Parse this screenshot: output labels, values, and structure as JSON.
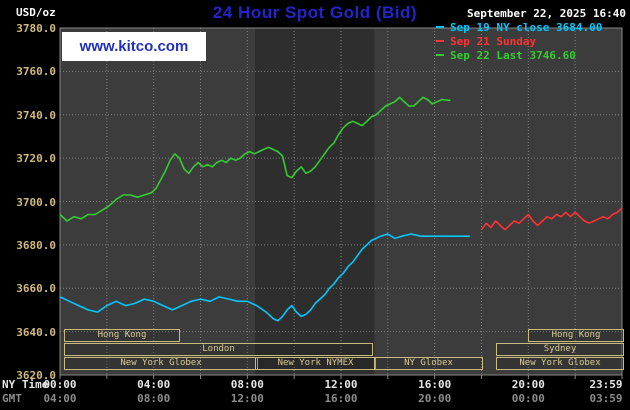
{
  "header": {
    "units_label": "USD/oz",
    "title": "24 Hour Spot Gold (Bid)",
    "datetime": "September 22, 2025 16:40",
    "watermark": "www.kitco.com",
    "legend": [
      {
        "label": "Sep 19 NY close 3684.00",
        "color": "#00c8ff"
      },
      {
        "label": "Sep 21 Sunday",
        "color": "#ff3232"
      },
      {
        "label": "Sep 22 Last 3746.60",
        "color": "#32cc32"
      }
    ]
  },
  "axes": {
    "ny_label": "NY Time",
    "gmt_label": "GMT",
    "ny_ticks": [
      {
        "t": 0,
        "label": "00:00"
      },
      {
        "t": 4,
        "label": "04:00"
      },
      {
        "t": 8,
        "label": "08:00"
      },
      {
        "t": 12,
        "label": "12:00"
      },
      {
        "t": 16,
        "label": "16:00"
      },
      {
        "t": 20,
        "label": "20:00"
      },
      {
        "t": 24,
        "label": "23:59"
      }
    ],
    "gmt_ticks": [
      {
        "t": 0,
        "label": "04:00"
      },
      {
        "t": 4,
        "label": "08:00"
      },
      {
        "t": 8,
        "label": "12:00"
      },
      {
        "t": 12,
        "label": "16:00"
      },
      {
        "t": 16,
        "label": "20:00"
      },
      {
        "t": 20,
        "label": "00:00"
      },
      {
        "t": 24,
        "label": "03:59"
      }
    ]
  },
  "chart_data": {
    "type": "line",
    "title": "24 Hour Spot Gold (Bid)",
    "ylabel": "USD/oz",
    "x_unit": "hours NY time",
    "xlim": [
      0,
      24
    ],
    "ylim": [
      3620,
      3780
    ],
    "yticks": [
      3780,
      3760,
      3740,
      3720,
      3700,
      3680,
      3660,
      3640,
      3620
    ],
    "ygrid": [
      3760,
      3740,
      3720,
      3700,
      3680,
      3660,
      3640
    ],
    "xgrid": [
      2,
      4,
      6,
      8,
      10,
      12,
      14,
      16,
      18,
      20,
      22
    ],
    "plot_bg": "#3c3c3c",
    "shade": {
      "t0": 8.33,
      "t1": 13.42,
      "color": "#2e2e2e"
    },
    "grid_color": "#7d7d7d",
    "border_color": "#888888",
    "series": [
      {
        "id": "sep19",
        "name": "Sep 19 NY close 3684.00",
        "color": "#00c8ff",
        "points": [
          [
            0,
            3656
          ],
          [
            0.4,
            3654
          ],
          [
            0.8,
            3652
          ],
          [
            1.2,
            3650
          ],
          [
            1.6,
            3649
          ],
          [
            2.0,
            3652
          ],
          [
            2.4,
            3654
          ],
          [
            2.8,
            3652
          ],
          [
            3.2,
            3653
          ],
          [
            3.6,
            3655
          ],
          [
            4.0,
            3654
          ],
          [
            4.4,
            3652
          ],
          [
            4.8,
            3650
          ],
          [
            5.2,
            3652
          ],
          [
            5.6,
            3654
          ],
          [
            6.0,
            3655
          ],
          [
            6.4,
            3654
          ],
          [
            6.8,
            3656
          ],
          [
            7.2,
            3655
          ],
          [
            7.6,
            3654
          ],
          [
            8.0,
            3654
          ],
          [
            8.4,
            3652
          ],
          [
            8.8,
            3649
          ],
          [
            9.1,
            3646
          ],
          [
            9.3,
            3645
          ],
          [
            9.5,
            3647
          ],
          [
            9.7,
            3650
          ],
          [
            9.9,
            3652
          ],
          [
            10.1,
            3649
          ],
          [
            10.3,
            3647
          ],
          [
            10.5,
            3648
          ],
          [
            10.7,
            3650
          ],
          [
            10.9,
            3653
          ],
          [
            11.1,
            3655
          ],
          [
            11.3,
            3657
          ],
          [
            11.5,
            3660
          ],
          [
            11.7,
            3662
          ],
          [
            11.9,
            3665
          ],
          [
            12.1,
            3667
          ],
          [
            12.3,
            3670
          ],
          [
            12.5,
            3672
          ],
          [
            12.7,
            3675
          ],
          [
            12.9,
            3678
          ],
          [
            13.1,
            3680
          ],
          [
            13.3,
            3682
          ],
          [
            13.5,
            3683
          ],
          [
            13.7,
            3684
          ],
          [
            14.0,
            3685
          ],
          [
            14.3,
            3683
          ],
          [
            14.6,
            3684
          ],
          [
            15.0,
            3685
          ],
          [
            15.4,
            3684
          ],
          [
            15.8,
            3684
          ],
          [
            16.2,
            3684
          ],
          [
            16.6,
            3684
          ],
          [
            17.0,
            3684
          ],
          [
            17.5,
            3684
          ]
        ]
      },
      {
        "id": "sep21",
        "name": "Sep 21 Sunday",
        "color": "#ff3232",
        "points": [
          [
            18.0,
            3687
          ],
          [
            18.2,
            3690
          ],
          [
            18.4,
            3688
          ],
          [
            18.6,
            3691
          ],
          [
            18.8,
            3689
          ],
          [
            19.0,
            3687
          ],
          [
            19.2,
            3689
          ],
          [
            19.4,
            3691
          ],
          [
            19.6,
            3690
          ],
          [
            19.8,
            3692
          ],
          [
            20.0,
            3694
          ],
          [
            20.2,
            3691
          ],
          [
            20.4,
            3689
          ],
          [
            20.6,
            3691
          ],
          [
            20.8,
            3693
          ],
          [
            21.0,
            3692
          ],
          [
            21.2,
            3694
          ],
          [
            21.4,
            3693
          ],
          [
            21.6,
            3695
          ],
          [
            21.8,
            3693
          ],
          [
            22.0,
            3695
          ],
          [
            22.2,
            3693
          ],
          [
            22.4,
            3691
          ],
          [
            22.6,
            3690
          ],
          [
            22.8,
            3691
          ],
          [
            23.0,
            3692
          ],
          [
            23.2,
            3693
          ],
          [
            23.4,
            3692
          ],
          [
            23.6,
            3694
          ],
          [
            23.8,
            3695
          ],
          [
            24.0,
            3697
          ]
        ]
      },
      {
        "id": "sep22",
        "name": "Sep 22 Last 3746.60",
        "color": "#32cc32",
        "points": [
          [
            0,
            3694
          ],
          [
            0.3,
            3691
          ],
          [
            0.6,
            3693
          ],
          [
            0.9,
            3692
          ],
          [
            1.2,
            3694
          ],
          [
            1.5,
            3694
          ],
          [
            1.8,
            3696
          ],
          [
            2.1,
            3698
          ],
          [
            2.4,
            3701
          ],
          [
            2.7,
            3703
          ],
          [
            3.0,
            3703
          ],
          [
            3.3,
            3702
          ],
          [
            3.6,
            3703
          ],
          [
            3.9,
            3704
          ],
          [
            4.1,
            3706
          ],
          [
            4.3,
            3710
          ],
          [
            4.5,
            3714
          ],
          [
            4.7,
            3719
          ],
          [
            4.9,
            3722
          ],
          [
            5.1,
            3720
          ],
          [
            5.3,
            3715
          ],
          [
            5.5,
            3713
          ],
          [
            5.7,
            3716
          ],
          [
            5.9,
            3718
          ],
          [
            6.1,
            3716
          ],
          [
            6.3,
            3717
          ],
          [
            6.5,
            3716
          ],
          [
            6.7,
            3718
          ],
          [
            6.9,
            3719
          ],
          [
            7.1,
            3718
          ],
          [
            7.3,
            3720
          ],
          [
            7.5,
            3719
          ],
          [
            7.7,
            3720
          ],
          [
            7.9,
            3722
          ],
          [
            8.1,
            3723
          ],
          [
            8.3,
            3722
          ],
          [
            8.5,
            3723
          ],
          [
            8.7,
            3724
          ],
          [
            8.9,
            3725
          ],
          [
            9.1,
            3724
          ],
          [
            9.3,
            3723
          ],
          [
            9.5,
            3721
          ],
          [
            9.7,
            3712
          ],
          [
            9.9,
            3711
          ],
          [
            10.1,
            3714
          ],
          [
            10.3,
            3716
          ],
          [
            10.5,
            3713
          ],
          [
            10.7,
            3714
          ],
          [
            10.9,
            3716
          ],
          [
            11.1,
            3719
          ],
          [
            11.3,
            3722
          ],
          [
            11.5,
            3725
          ],
          [
            11.7,
            3727
          ],
          [
            11.9,
            3731
          ],
          [
            12.1,
            3734
          ],
          [
            12.3,
            3736
          ],
          [
            12.5,
            3737
          ],
          [
            12.7,
            3736
          ],
          [
            12.9,
            3735
          ],
          [
            13.1,
            3737
          ],
          [
            13.3,
            3739
          ],
          [
            13.5,
            3740
          ],
          [
            13.7,
            3742
          ],
          [
            13.9,
            3744
          ],
          [
            14.1,
            3745
          ],
          [
            14.3,
            3746
          ],
          [
            14.5,
            3748
          ],
          [
            14.7,
            3746
          ],
          [
            14.9,
            3744
          ],
          [
            15.1,
            3744
          ],
          [
            15.3,
            3746
          ],
          [
            15.5,
            3748
          ],
          [
            15.7,
            3747
          ],
          [
            15.9,
            3745
          ],
          [
            16.1,
            3746
          ],
          [
            16.3,
            3747
          ],
          [
            16.67,
            3746.6
          ]
        ]
      }
    ],
    "sessions": [
      {
        "label": "Hong Kong",
        "row": 0,
        "t0": 0.15,
        "t1": 5.0
      },
      {
        "label": "Hong Kong",
        "row": 0,
        "t0": 20.0,
        "t1": 24.0
      },
      {
        "label": "London",
        "row": 1,
        "t0": 0.15,
        "t1": 13.25
      },
      {
        "label": "Sydney",
        "row": 1,
        "t0": 18.6,
        "t1": 24.0
      },
      {
        "label": "New York Globex",
        "row": 2,
        "t0": 0.15,
        "t1": 8.33
      },
      {
        "label": "New York NYMEX",
        "row": 2,
        "t0": 8.33,
        "t1": 13.42
      },
      {
        "label": "NY Globex",
        "row": 2,
        "t0": 13.42,
        "t1": 18.0
      },
      {
        "label": "New York Globex",
        "row": 2,
        "t0": 18.6,
        "t1": 24.0
      }
    ]
  }
}
